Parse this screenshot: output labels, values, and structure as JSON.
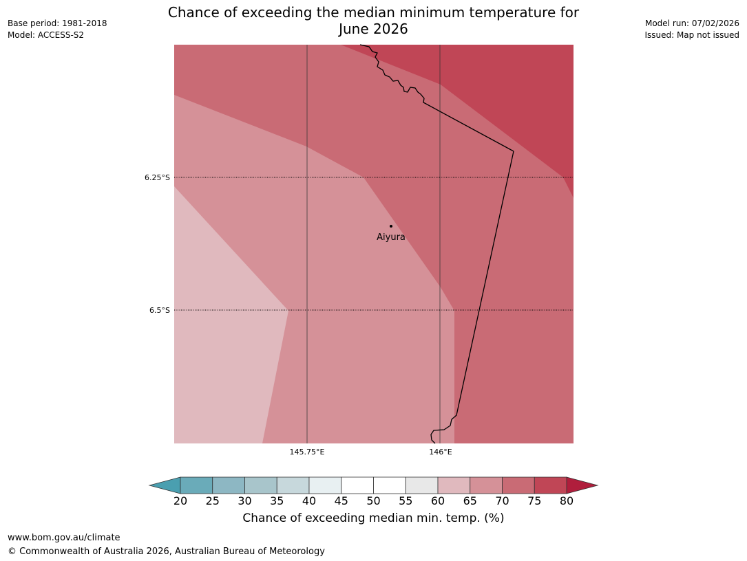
{
  "title": {
    "line1": "Chance of exceeding the median minimum temperature for",
    "line2": "June 2026"
  },
  "meta": {
    "base_period": "Base period: 1981-2018",
    "model": "Model: ACCESS-S2",
    "model_run": "Model run: 07/02/2026",
    "issued": "Issued: Map not issued"
  },
  "map": {
    "lon_labels": [
      "145.75°E",
      "146°E"
    ],
    "lat_labels": [
      "6.25°S",
      "6.5°S"
    ],
    "place": {
      "name": "Aiyura"
    },
    "region_colors": {
      "c60_65": "#e0b9be",
      "c65_70": "#d59198",
      "c70_75": "#c96b75",
      "c75_80": "#c04656"
    }
  },
  "colorbar": {
    "label": "Chance of exceeding median min. temp. (%)",
    "ticks": [
      "20",
      "25",
      "30",
      "35",
      "40",
      "45",
      "50",
      "55",
      "60",
      "65",
      "70",
      "75",
      "80"
    ],
    "colors": [
      "#6aabb9",
      "#8db7c3",
      "#a8c5cb",
      "#c7d8dc",
      "#e8f0f2",
      "#ffffff",
      "#ffffff",
      "#e8e8e8",
      "#e0b9be",
      "#d59198",
      "#c96b75",
      "#c04656"
    ],
    "under_color": "#4a9fb0",
    "over_color": "#b01e3c"
  },
  "footer": {
    "url": "www.bom.gov.au/climate",
    "copyright": "© Commonwealth of Australia 2026, Australian Bureau of Meteorology"
  }
}
